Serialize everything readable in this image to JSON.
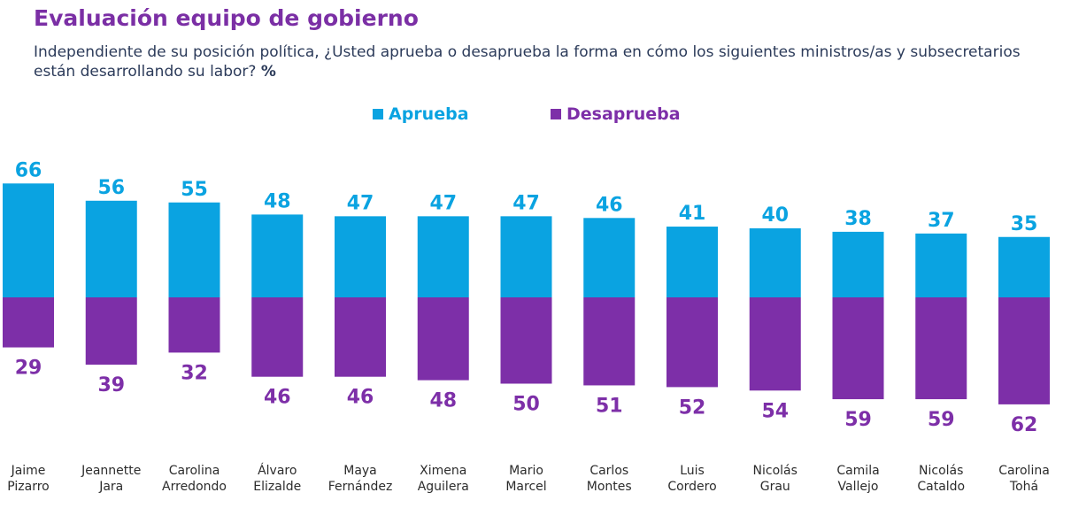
{
  "title": "Evaluación equipo de gobierno",
  "subtitle": "Independiente de su posición política, ¿Usted aprueba o desaprueba la forma en cómo los siguientes ministros/as y subsecretarios están desarrollando su labor?",
  "subtitle_unit": "%",
  "colors": {
    "aprueba": "#0aa3e1",
    "desaprueba": "#7d2fa8",
    "title": "#7b2fa5",
    "text": "#2c3b5a"
  },
  "chart_data": {
    "type": "bar",
    "categories": [
      [
        "Jaime",
        "Pizarro"
      ],
      [
        "Jeannette",
        "Jara"
      ],
      [
        "Carolina",
        "Arredondo"
      ],
      [
        "Álvaro",
        "Elizalde"
      ],
      [
        "Maya",
        "Fernández"
      ],
      [
        "Ximena",
        "Aguilera"
      ],
      [
        "Mario",
        "Marcel"
      ],
      [
        "Carlos",
        "Montes"
      ],
      [
        "Luis",
        "Cordero"
      ],
      [
        "Nicolás",
        "Grau"
      ],
      [
        "Camila",
        "Vallejo"
      ],
      [
        "Nicolás",
        "Cataldo"
      ],
      [
        "Carolina",
        "Tohá"
      ]
    ],
    "series": [
      {
        "name": "Aprueba",
        "values": [
          66,
          56,
          55,
          48,
          47,
          47,
          47,
          46,
          41,
          40,
          38,
          37,
          35
        ]
      },
      {
        "name": "Desaprueba",
        "values": [
          29,
          39,
          32,
          46,
          46,
          48,
          50,
          51,
          52,
          54,
          59,
          59,
          62
        ]
      }
    ],
    "legend_position": "top-center",
    "diverging": true
  }
}
